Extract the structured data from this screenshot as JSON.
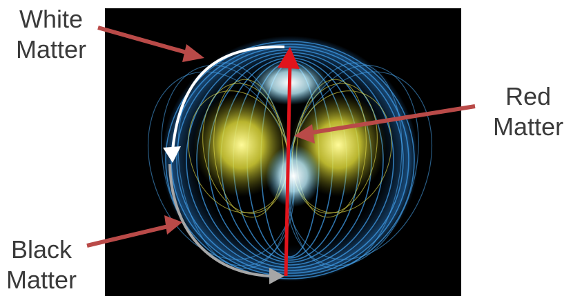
{
  "labels": {
    "white_line1": "White",
    "white_line2": "Matter",
    "red_line1": "Red",
    "red_line2": "Matter",
    "black_line1": "Black",
    "black_line2": "Matter"
  },
  "colors": {
    "background_panel": "#000000",
    "outer_shell": "#3a8fd8",
    "inner_glow": "#e6e04a",
    "core_glow": "#dff6ff",
    "pointer_arrow": "#b94a48",
    "axis_arrow": "#e0141c",
    "white_flow": "#ffffff",
    "black_flow": "#a6a6a6",
    "label_text": "#3a3a3a"
  }
}
